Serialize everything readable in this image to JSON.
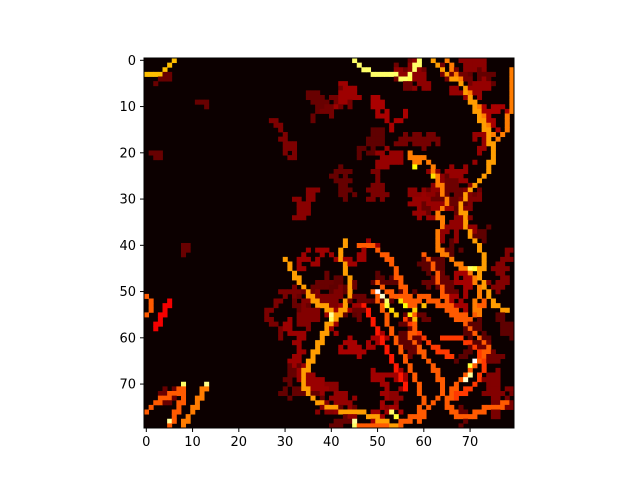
{
  "chart_data": {
    "type": "heatmap",
    "title": "",
    "xlabel": "",
    "ylabel": "",
    "colormap": "hot",
    "colors": {
      "background": "#0c0000",
      "low": "#5a0000",
      "mid": "#e00000",
      "high": "#ff8c00",
      "peak": "#ffff66"
    },
    "grid_shape": [
      80,
      80
    ],
    "xlim": [
      -0.5,
      79.5
    ],
    "ylim": [
      79.5,
      -0.5
    ],
    "y_inverted": true,
    "x_ticks": [
      0,
      10,
      20,
      30,
      40,
      50,
      60,
      70
    ],
    "y_ticks": [
      0,
      10,
      20,
      30,
      40,
      50,
      60,
      70
    ],
    "x_tick_labels": [
      "0",
      "10",
      "20",
      "30",
      "40",
      "50",
      "60",
      "70"
    ],
    "y_tick_labels": [
      "0",
      "10",
      "20",
      "30",
      "40",
      "50",
      "60",
      "70"
    ],
    "grid": false,
    "legend": "none",
    "description_of_pattern": "random-walk trajectories on an 80x80 grid: bright red/orange/yellow curving paths concentrated on the right half (x>=30), dense cluster near (55,53), faint dark-red trails elsewhere, left half mostly near-zero",
    "trails": [
      {
        "intensity": 0.85,
        "points": [
          [
            45,
            0
          ],
          [
            47,
            2
          ],
          [
            50,
            3
          ],
          [
            53,
            3
          ],
          [
            56,
            4
          ],
          [
            58,
            2
          ],
          [
            59,
            0
          ]
        ]
      },
      {
        "intensity": 0.65,
        "points": [
          [
            0,
            3
          ],
          [
            3,
            3
          ],
          [
            5,
            1
          ],
          [
            6,
            0
          ]
        ]
      },
      {
        "intensity": 0.6,
        "points": [
          [
            62,
            0
          ],
          [
            65,
            3
          ],
          [
            68,
            5
          ],
          [
            70,
            8
          ],
          [
            72,
            12
          ],
          [
            74,
            16
          ],
          [
            75,
            20
          ],
          [
            74,
            24
          ],
          [
            72,
            26
          ],
          [
            70,
            28
          ],
          [
            68,
            31
          ],
          [
            69,
            35
          ],
          [
            70,
            38
          ],
          [
            72,
            40
          ],
          [
            73,
            43
          ],
          [
            72,
            47
          ],
          [
            74,
            50
          ],
          [
            75,
            53
          ],
          [
            78,
            54
          ]
        ]
      },
      {
        "intensity": 0.55,
        "points": [
          [
            65,
            0
          ],
          [
            67,
            3
          ],
          [
            69,
            6
          ],
          [
            71,
            9
          ],
          [
            73,
            12
          ],
          [
            74,
            15
          ],
          [
            76,
            17
          ],
          [
            78,
            15
          ],
          [
            79,
            8
          ],
          [
            79,
            2
          ]
        ]
      },
      {
        "intensity": 0.55,
        "points": [
          [
            57,
            20
          ],
          [
            58,
            22
          ],
          [
            60,
            21
          ],
          [
            62,
            23
          ],
          [
            63,
            26
          ],
          [
            64,
            28
          ],
          [
            65,
            31
          ],
          [
            63,
            33
          ],
          [
            64,
            35
          ],
          [
            63,
            38
          ],
          [
            63,
            41
          ],
          [
            65,
            42
          ],
          [
            67,
            44
          ],
          [
            69,
            45
          ],
          [
            71,
            47
          ],
          [
            72,
            50
          ],
          [
            71,
            53
          ],
          [
            72,
            55
          ]
        ]
      },
      {
        "intensity": 0.6,
        "points": [
          [
            43,
            39
          ],
          [
            42,
            42
          ],
          [
            43,
            45
          ],
          [
            44,
            48
          ],
          [
            44,
            50
          ],
          [
            43,
            53
          ],
          [
            42,
            55
          ],
          [
            40,
            56
          ],
          [
            39,
            58
          ],
          [
            38,
            60
          ],
          [
            37,
            62
          ],
          [
            36,
            64
          ],
          [
            35,
            66
          ],
          [
            34,
            68
          ],
          [
            34,
            70
          ],
          [
            35,
            72
          ],
          [
            37,
            74
          ],
          [
            40,
            75
          ],
          [
            43,
            76
          ],
          [
            46,
            76
          ],
          [
            49,
            77
          ],
          [
            51,
            78
          ],
          [
            54,
            79
          ]
        ]
      },
      {
        "intensity": 0.6,
        "points": [
          [
            30,
            43
          ],
          [
            32,
            46
          ],
          [
            33,
            48
          ],
          [
            35,
            50
          ],
          [
            36,
            52
          ],
          [
            38,
            53
          ],
          [
            40,
            54
          ],
          [
            40,
            57
          ]
        ]
      },
      {
        "intensity": 0.5,
        "points": [
          [
            46,
            40
          ],
          [
            49,
            40
          ],
          [
            51,
            42
          ],
          [
            53,
            43
          ],
          [
            54,
            46
          ],
          [
            55,
            48
          ],
          [
            56,
            50
          ],
          [
            57,
            52
          ],
          [
            58,
            54
          ],
          [
            58,
            56
          ],
          [
            58,
            58
          ],
          [
            57,
            60
          ],
          [
            59,
            62
          ],
          [
            60,
            64
          ],
          [
            62,
            66
          ],
          [
            63,
            68
          ],
          [
            64,
            70
          ],
          [
            64,
            72
          ],
          [
            62,
            74
          ],
          [
            60,
            76
          ],
          [
            59,
            78
          ]
        ]
      },
      {
        "intensity": 0.5,
        "points": [
          [
            50,
            48
          ],
          [
            52,
            50
          ],
          [
            54,
            51
          ],
          [
            56,
            52
          ],
          [
            58,
            52
          ],
          [
            60,
            51
          ],
          [
            62,
            52
          ],
          [
            64,
            53
          ],
          [
            66,
            55
          ],
          [
            68,
            56
          ],
          [
            70,
            58
          ],
          [
            72,
            60
          ],
          [
            74,
            62
          ],
          [
            73,
            64
          ],
          [
            71,
            66
          ],
          [
            69,
            68
          ],
          [
            67,
            70
          ],
          [
            66,
            72
          ],
          [
            65,
            74
          ],
          [
            66,
            76
          ],
          [
            68,
            77
          ],
          [
            70,
            77
          ],
          [
            72,
            76
          ],
          [
            74,
            75
          ],
          [
            76,
            75
          ],
          [
            78,
            74
          ]
        ]
      },
      {
        "intensity": 0.5,
        "points": [
          [
            0,
            76
          ],
          [
            2,
            74
          ],
          [
            4,
            73
          ],
          [
            6,
            72
          ],
          [
            8,
            71
          ],
          [
            8,
            73
          ],
          [
            7,
            75
          ],
          [
            6,
            77
          ],
          [
            5,
            79
          ]
        ]
      },
      {
        "intensity": 0.55,
        "points": [
          [
            13,
            70
          ],
          [
            12,
            72
          ],
          [
            11,
            74
          ],
          [
            10,
            76
          ],
          [
            9,
            77
          ],
          [
            8,
            79
          ]
        ]
      },
      {
        "intensity": 0.5,
        "points": [
          [
            49,
            50
          ],
          [
            51,
            53
          ],
          [
            52,
            56
          ],
          [
            53,
            59
          ],
          [
            55,
            62
          ],
          [
            56,
            65
          ],
          [
            58,
            68
          ],
          [
            59,
            71
          ],
          [
            60,
            74
          ],
          [
            58,
            77
          ],
          [
            56,
            78
          ],
          [
            54,
            79
          ],
          [
            51,
            79
          ],
          [
            48,
            79
          ],
          [
            45,
            79
          ]
        ]
      },
      {
        "intensity": 0.45,
        "points": [
          [
            64,
            60
          ],
          [
            67,
            60
          ],
          [
            70,
            61
          ],
          [
            72,
            63
          ],
          [
            73,
            66
          ],
          [
            72,
            69
          ],
          [
            70,
            71
          ],
          [
            68,
            72
          ],
          [
            66,
            73
          ]
        ]
      },
      {
        "intensity": 0.45,
        "points": [
          [
            56,
            56
          ],
          [
            58,
            58
          ],
          [
            60,
            60
          ],
          [
            62,
            62
          ],
          [
            64,
            63
          ],
          [
            66,
            64
          ]
        ]
      },
      {
        "intensity": 0.5,
        "points": [
          [
            60,
            42
          ],
          [
            62,
            44
          ],
          [
            63,
            47
          ],
          [
            64,
            50
          ],
          [
            65,
            52
          ],
          [
            66,
            54
          ],
          [
            68,
            55
          ],
          [
            70,
            56
          ],
          [
            72,
            54
          ],
          [
            73,
            52
          ]
        ]
      },
      {
        "intensity": 0.4,
        "points": [
          [
            47,
            53
          ],
          [
            49,
            56
          ],
          [
            50,
            59
          ],
          [
            52,
            62
          ],
          [
            53,
            65
          ],
          [
            55,
            68
          ],
          [
            56,
            71
          ]
        ]
      },
      {
        "intensity": 0.5,
        "points": [
          [
            0,
            51
          ],
          [
            1,
            52
          ],
          [
            1,
            54
          ],
          [
            0,
            55
          ]
        ]
      },
      {
        "intensity": 0.35,
        "points": [
          [
            2,
            58
          ],
          [
            3,
            56
          ],
          [
            4,
            54
          ],
          [
            5,
            52
          ]
        ]
      }
    ],
    "hotspots": [
      {
        "point": [
          50,
          50
        ],
        "value": 1.0
      },
      {
        "point": [
          51,
          51
        ],
        "value": 0.95
      },
      {
        "point": [
          52,
          52
        ],
        "value": 0.85
      },
      {
        "point": [
          52,
          53
        ],
        "value": 0.8
      },
      {
        "point": [
          56,
          53
        ],
        "value": 0.75
      },
      {
        "point": [
          55,
          52
        ],
        "value": 0.7
      },
      {
        "point": [
          57,
          55
        ],
        "value": 0.72
      },
      {
        "point": [
          58,
          54
        ],
        "value": 0.68
      },
      {
        "point": [
          60,
          53
        ],
        "value": 0.65
      },
      {
        "point": [
          54,
          55
        ],
        "value": 0.66
      },
      {
        "point": [
          53,
          54
        ],
        "value": 0.7
      },
      {
        "point": [
          58,
          56
        ],
        "value": 0.65
      },
      {
        "point": [
          40,
          55
        ],
        "value": 0.9
      },
      {
        "point": [
          40,
          56
        ],
        "value": 0.85
      },
      {
        "point": [
          45,
          78
        ],
        "value": 0.9
      },
      {
        "point": [
          45,
          79
        ],
        "value": 0.85
      },
      {
        "point": [
          53,
          76
        ],
        "value": 0.85
      },
      {
        "point": [
          54,
          77
        ],
        "value": 0.8
      },
      {
        "point": [
          69,
          69
        ],
        "value": 0.95
      },
      {
        "point": [
          70,
          68
        ],
        "value": 0.9
      },
      {
        "point": [
          70,
          66
        ],
        "value": 0.8
      },
      {
        "point": [
          71,
          65
        ],
        "value": 1.0
      },
      {
        "point": [
          70,
          45
        ],
        "value": 0.85
      },
      {
        "point": [
          71,
          45
        ],
        "value": 0.8
      },
      {
        "point": [
          13,
          70
        ],
        "value": 0.88
      },
      {
        "point": [
          8,
          70
        ],
        "value": 0.85
      },
      {
        "point": [
          5,
          78
        ],
        "value": 0.9
      },
      {
        "point": [
          57,
          4
        ],
        "value": 0.82
      },
      {
        "point": [
          58,
          23
        ],
        "value": 0.75
      },
      {
        "point": [
          62,
          25
        ],
        "value": 0.7
      }
    ]
  }
}
